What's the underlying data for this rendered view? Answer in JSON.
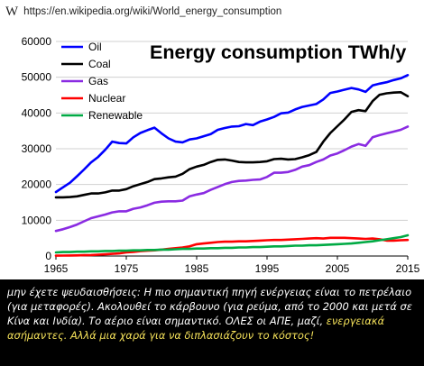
{
  "browser": {
    "icon": "wikipedia-w-icon",
    "icon_glyph": "W",
    "url": "https://en.wikipedia.org/wiki/World_energy_consumption"
  },
  "caption": {
    "text_white": "μην έχετε ψευδαισθήσεις: Η πιο σημαντική πηγή ενέργειας είναι το πετρέλαιο (για μεταφορές).  Ακολουθεί το κάρβουνο (για ρεύμα, από το 2000 και μετά σε Κίνα και Ινδία). Το αέριο είναι σημαντικό. ΟΛΕΣ οι ΑΠΕ, μαζί, ",
    "text_highlight": "ενεργειακά ασήμαντες. Αλλά μια χαρά για να διπλασιάζουν το κόστος!",
    "highlight_color": "#f4e15a"
  },
  "chart_data": {
    "type": "line",
    "title": "Energy consumption TWh/y",
    "xlabel": "",
    "ylabel": "",
    "xlim": [
      1965,
      2015
    ],
    "ylim": [
      0,
      60000
    ],
    "x_ticks": [
      "1965",
      "1975",
      "1985",
      "1995",
      "2005",
      "2015"
    ],
    "y_ticks": [
      "0",
      "10000",
      "20000",
      "30000",
      "40000",
      "50000",
      "60000"
    ],
    "grid": "horizontal",
    "legend_position": "top-left",
    "x": [
      1965,
      1966,
      1967,
      1968,
      1969,
      1970,
      1971,
      1972,
      1973,
      1974,
      1975,
      1976,
      1977,
      1978,
      1979,
      1980,
      1981,
      1982,
      1983,
      1984,
      1985,
      1986,
      1987,
      1988,
      1989,
      1990,
      1991,
      1992,
      1993,
      1994,
      1995,
      1996,
      1997,
      1998,
      1999,
      2000,
      2001,
      2002,
      2003,
      2004,
      2005,
      2006,
      2007,
      2008,
      2009,
      2010,
      2011,
      2012,
      2013,
      2014,
      2015
    ],
    "series": [
      {
        "name": "Oil",
        "color": "#0000ff",
        "values": [
          17900,
          19200,
          20500,
          22300,
          24200,
          26200,
          27700,
          29700,
          32000,
          31600,
          31500,
          33200,
          34400,
          35200,
          35900,
          34300,
          32900,
          32000,
          31800,
          32600,
          32900,
          33500,
          34100,
          35300,
          35800,
          36200,
          36300,
          36900,
          36600,
          37600,
          38200,
          38900,
          39900,
          40100,
          41000,
          41700,
          42100,
          42500,
          43800,
          45600,
          46000,
          46500,
          47000,
          46600,
          45900,
          47700,
          48200,
          48600,
          49200,
          49700,
          50600
        ]
      },
      {
        "name": "Coal",
        "color": "#000000",
        "values": [
          16400,
          16400,
          16500,
          16700,
          17100,
          17500,
          17500,
          17800,
          18300,
          18300,
          18700,
          19500,
          20100,
          20700,
          21500,
          21700,
          22000,
          22200,
          23000,
          24300,
          25000,
          25500,
          26300,
          26900,
          27000,
          26700,
          26300,
          26200,
          26200,
          26300,
          26500,
          27100,
          27200,
          27000,
          27100,
          27600,
          28200,
          29100,
          32000,
          34400,
          36300,
          38200,
          40300,
          40800,
          40500,
          43300,
          45100,
          45500,
          45700,
          45800,
          44700
        ]
      },
      {
        "name": "Gas",
        "color": "#8a2be2",
        "values": [
          7000,
          7500,
          8100,
          8800,
          9700,
          10600,
          11100,
          11600,
          12200,
          12500,
          12500,
          13200,
          13600,
          14200,
          14900,
          15200,
          15300,
          15300,
          15500,
          16700,
          17200,
          17600,
          18500,
          19300,
          20100,
          20700,
          21000,
          21100,
          21300,
          21400,
          22100,
          23300,
          23300,
          23500,
          24100,
          25000,
          25400,
          26300,
          27000,
          28100,
          28700,
          29600,
          30600,
          31300,
          30800,
          33200,
          33800,
          34300,
          34800,
          35300,
          36200
        ]
      },
      {
        "name": "Nuclear",
        "color": "#ff0000",
        "values": [
          100,
          120,
          150,
          180,
          220,
          280,
          380,
          480,
          600,
          720,
          1000,
          1150,
          1350,
          1500,
          1600,
          1800,
          2000,
          2200,
          2400,
          2700,
          3300,
          3500,
          3700,
          3900,
          4000,
          4000,
          4100,
          4100,
          4200,
          4300,
          4400,
          4500,
          4500,
          4600,
          4700,
          4800,
          4900,
          5000,
          4900,
          5100,
          5100,
          5100,
          5000,
          4900,
          4800,
          4900,
          4700,
          4300,
          4300,
          4400,
          4500
        ]
      },
      {
        "name": "Renewable",
        "color": "#00aa44",
        "values": [
          1000,
          1100,
          1100,
          1200,
          1200,
          1300,
          1300,
          1400,
          1400,
          1500,
          1500,
          1600,
          1600,
          1700,
          1700,
          1800,
          1800,
          1900,
          2000,
          2000,
          2100,
          2100,
          2200,
          2200,
          2300,
          2300,
          2400,
          2400,
          2500,
          2500,
          2600,
          2700,
          2700,
          2800,
          2900,
          2900,
          3000,
          3000,
          3100,
          3200,
          3300,
          3400,
          3500,
          3700,
          3900,
          4100,
          4400,
          4700,
          5000,
          5300,
          5800
        ]
      }
    ]
  }
}
